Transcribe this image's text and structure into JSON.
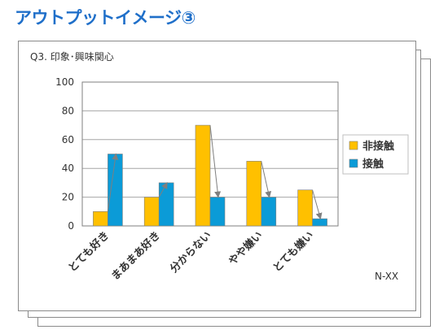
{
  "page": {
    "title": "アウトプットイメージ③"
  },
  "footer": {
    "code": "N-XX"
  },
  "colors": {
    "series1": "#ffc000",
    "series2": "#0b9bd7",
    "grid": "#a6a6a6",
    "arrow": "#7f7f7f",
    "title": "#1f6fc9"
  },
  "chart_data": {
    "type": "bar",
    "title": "Q3. 印象･興味関心",
    "xlabel": "",
    "ylabel": "",
    "ylim": [
      0,
      100
    ],
    "yticks": [
      0,
      20,
      40,
      60,
      80,
      100
    ],
    "grid": true,
    "legend_position": "right",
    "categories": [
      "とても好き",
      "まあまあ好き",
      "分からない",
      "やや嫌い",
      "とても嫌い"
    ],
    "series": [
      {
        "name": "非接触",
        "values": [
          10,
          20,
          70,
          45,
          25
        ]
      },
      {
        "name": "接触",
        "values": [
          50,
          30,
          20,
          20,
          5
        ]
      }
    ],
    "annotations": "arrows from each 非接触 bar top to the corresponding 接触 bar top"
  }
}
